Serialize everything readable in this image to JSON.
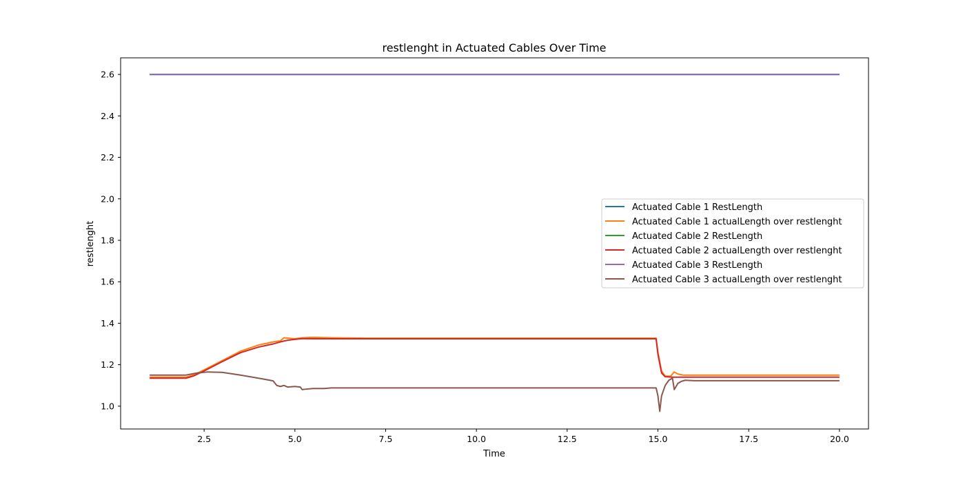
{
  "chart_data": {
    "type": "line",
    "title": "restlenght in Actuated Cables Over Time",
    "xlabel": "Time",
    "ylabel": "restlenght",
    "xlim": [
      0.2,
      20.8
    ],
    "ylim": [
      0.89,
      2.68
    ],
    "xticks": [
      2.5,
      5.0,
      7.5,
      10.0,
      12.5,
      15.0,
      17.5,
      20.0
    ],
    "xtick_labels": [
      "2.5",
      "5.0",
      "7.5",
      "10.0",
      "12.5",
      "15.0",
      "17.5",
      "20.0"
    ],
    "yticks": [
      1.0,
      1.2,
      1.4,
      1.6,
      1.8,
      2.0,
      2.2,
      2.4,
      2.6
    ],
    "ytick_labels": [
      "1.0",
      "1.2",
      "1.4",
      "1.6",
      "1.8",
      "2.0",
      "2.2",
      "2.4",
      "2.6"
    ],
    "grid": false,
    "legend_position": "center-right",
    "series": [
      {
        "name": "Actuated Cable 1 RestLength",
        "color": "#1f77b4",
        "points": [
          [
            1.0,
            2.6
          ],
          [
            20.0,
            2.6
          ]
        ]
      },
      {
        "name": "Actuated Cable 1 actualLength over restlenght",
        "color": "#ff7f0e",
        "points": [
          [
            1.0,
            1.14
          ],
          [
            2.0,
            1.14
          ],
          [
            2.2,
            1.15
          ],
          [
            2.5,
            1.175
          ],
          [
            3.0,
            1.22
          ],
          [
            3.5,
            1.265
          ],
          [
            4.0,
            1.295
          ],
          [
            4.4,
            1.31
          ],
          [
            4.6,
            1.315
          ],
          [
            4.7,
            1.33
          ],
          [
            5.0,
            1.325
          ],
          [
            5.2,
            1.33
          ],
          [
            5.5,
            1.332
          ],
          [
            6.0,
            1.33
          ],
          [
            7.0,
            1.328
          ],
          [
            10.0,
            1.328
          ],
          [
            14.95,
            1.328
          ],
          [
            15.0,
            1.26
          ],
          [
            15.1,
            1.17
          ],
          [
            15.2,
            1.145
          ],
          [
            15.35,
            1.145
          ],
          [
            15.45,
            1.165
          ],
          [
            15.55,
            1.155
          ],
          [
            15.7,
            1.15
          ],
          [
            16.0,
            1.15
          ],
          [
            20.0,
            1.15
          ]
        ]
      },
      {
        "name": "Actuated Cable 2 RestLength",
        "color": "#2ca02c",
        "points": [
          [
            1.0,
            2.6
          ],
          [
            20.0,
            2.6
          ]
        ]
      },
      {
        "name": "Actuated Cable 2 actualLength over restlenght",
        "color": "#d62728",
        "points": [
          [
            1.0,
            1.135
          ],
          [
            2.0,
            1.135
          ],
          [
            2.2,
            1.145
          ],
          [
            2.5,
            1.17
          ],
          [
            3.0,
            1.215
          ],
          [
            3.5,
            1.258
          ],
          [
            4.0,
            1.285
          ],
          [
            4.4,
            1.3
          ],
          [
            4.5,
            1.305
          ],
          [
            4.6,
            1.31
          ],
          [
            4.8,
            1.318
          ],
          [
            5.0,
            1.322
          ],
          [
            5.2,
            1.326
          ],
          [
            5.5,
            1.325
          ],
          [
            6.0,
            1.325
          ],
          [
            10.0,
            1.325
          ],
          [
            14.95,
            1.325
          ],
          [
            15.0,
            1.25
          ],
          [
            15.1,
            1.16
          ],
          [
            15.2,
            1.142
          ],
          [
            15.4,
            1.14
          ],
          [
            15.7,
            1.14
          ],
          [
            16.0,
            1.14
          ],
          [
            20.0,
            1.14
          ]
        ]
      },
      {
        "name": "Actuated Cable 3 RestLength",
        "color": "#9467bd",
        "points": [
          [
            1.0,
            2.6
          ],
          [
            20.0,
            2.6
          ]
        ]
      },
      {
        "name": "Actuated Cable 3 actualLength over restlenght",
        "color": "#8c564b",
        "points": [
          [
            1.0,
            1.15
          ],
          [
            2.0,
            1.15
          ],
          [
            2.3,
            1.16
          ],
          [
            2.6,
            1.165
          ],
          [
            3.0,
            1.163
          ],
          [
            3.5,
            1.15
          ],
          [
            4.0,
            1.135
          ],
          [
            4.4,
            1.122
          ],
          [
            4.5,
            1.1
          ],
          [
            4.6,
            1.095
          ],
          [
            4.7,
            1.1
          ],
          [
            4.8,
            1.092
          ],
          [
            5.0,
            1.095
          ],
          [
            5.15,
            1.092
          ],
          [
            5.2,
            1.08
          ],
          [
            5.3,
            1.082
          ],
          [
            5.5,
            1.085
          ],
          [
            5.8,
            1.085
          ],
          [
            6.0,
            1.088
          ],
          [
            10.0,
            1.088
          ],
          [
            14.95,
            1.088
          ],
          [
            15.0,
            1.05
          ],
          [
            15.05,
            0.975
          ],
          [
            15.1,
            1.05
          ],
          [
            15.15,
            1.075
          ],
          [
            15.2,
            1.1
          ],
          [
            15.3,
            1.125
          ],
          [
            15.4,
            1.135
          ],
          [
            15.45,
            1.08
          ],
          [
            15.55,
            1.11
          ],
          [
            15.65,
            1.12
          ],
          [
            15.75,
            1.125
          ],
          [
            16.0,
            1.123
          ],
          [
            20.0,
            1.123
          ]
        ]
      }
    ]
  }
}
